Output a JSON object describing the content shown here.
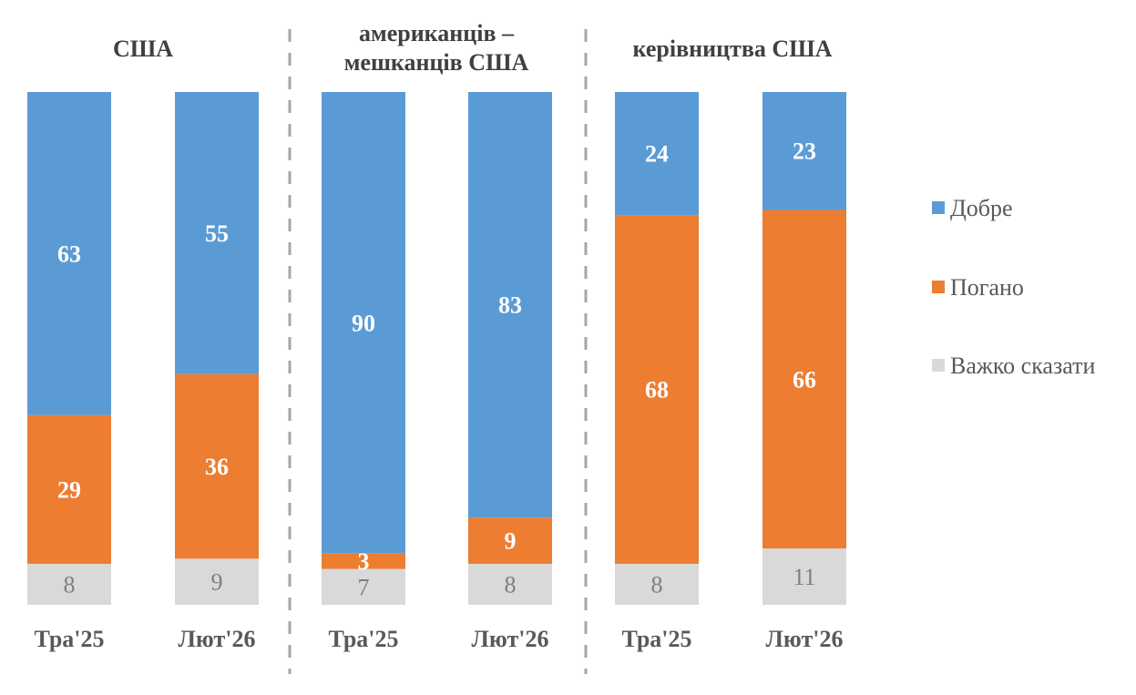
{
  "chart_data": {
    "type": "bar",
    "stacked": true,
    "title": "",
    "xlabel": "",
    "ylabel": "",
    "ylim": [
      0,
      100
    ],
    "grid": false,
    "legend_position": "right",
    "groups": [
      {
        "title_lines": [
          "США"
        ],
        "categories": [
          "Тра'25",
          "Лют'26"
        ]
      },
      {
        "title_lines": [
          "американців –",
          "мешканців США"
        ],
        "categories": [
          "Тра'25",
          "Лют'26"
        ]
      },
      {
        "title_lines": [
          "керівництва США"
        ],
        "categories": [
          "Тра'25",
          "Лют'26"
        ]
      }
    ],
    "categories": [
      "Тра'25",
      "Лют'26",
      "Тра'25",
      "Лют'26",
      "Тра'25",
      "Лют'26"
    ],
    "series": [
      {
        "name": "Добре",
        "color": "#5b9bd5",
        "label_color": "#ffffff",
        "label_bold": true,
        "values": [
          63,
          55,
          90,
          83,
          24,
          23
        ]
      },
      {
        "name": "Погано",
        "color": "#ed7d31",
        "label_color": "#ffffff",
        "label_bold": true,
        "values": [
          29,
          36,
          3,
          9,
          68,
          66
        ]
      },
      {
        "name": "Важко сказати",
        "color": "#d9d9d9",
        "label_color": "#7f7f7f",
        "label_bold": false,
        "values": [
          8,
          9,
          7,
          8,
          8,
          11
        ]
      }
    ],
    "separator_color": "#a6a6a6"
  }
}
